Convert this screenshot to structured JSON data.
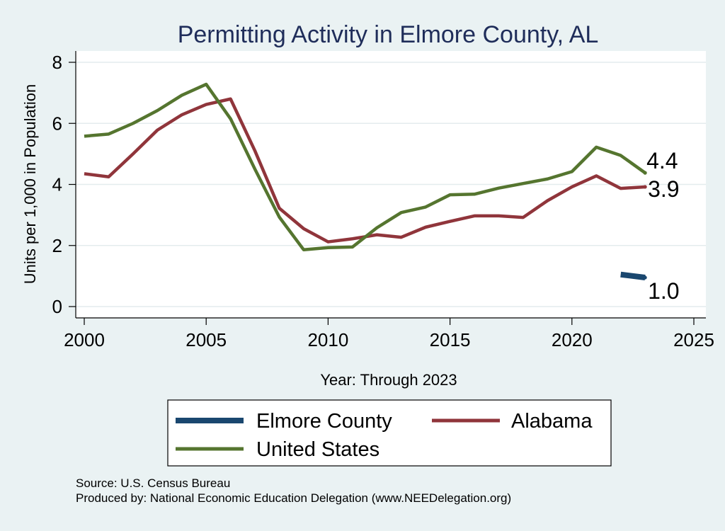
{
  "chart_data": {
    "type": "line",
    "title": "Permitting Activity in Elmore County, AL",
    "xlabel": "Year: Through 2023",
    "ylabel": "Units per 1,000 in Population",
    "xlim": [
      2000,
      2025
    ],
    "ylim": [
      0,
      8
    ],
    "x_ticks": [
      "2000",
      "2005",
      "2010",
      "2015",
      "2020",
      "2025"
    ],
    "y_ticks": [
      "0",
      "2",
      "4",
      "6",
      "8"
    ],
    "grid": true,
    "legend_position": "bottom",
    "series": [
      {
        "name": "Elmore County",
        "color": "#1a476f",
        "x": [
          2022,
          2023
        ],
        "values": [
          1.05,
          0.95
        ],
        "end_label": "1.0"
      },
      {
        "name": "Alabama",
        "color": "#90353b",
        "x": [
          2000,
          2001,
          2002,
          2003,
          2004,
          2005,
          2006,
          2007,
          2008,
          2009,
          2010,
          2011,
          2012,
          2013,
          2014,
          2015,
          2016,
          2017,
          2018,
          2019,
          2020,
          2021,
          2022,
          2023
        ],
        "values": [
          4.35,
          4.25,
          5.0,
          5.78,
          6.28,
          6.62,
          6.8,
          5.1,
          3.22,
          2.55,
          2.12,
          2.22,
          2.35,
          2.27,
          2.6,
          2.79,
          2.97,
          2.97,
          2.92,
          3.47,
          3.92,
          4.28,
          3.87,
          3.92
        ],
        "end_label": "3.9"
      },
      {
        "name": "United States",
        "color": "#55752f",
        "x": [
          2000,
          2001,
          2002,
          2003,
          2004,
          2005,
          2006,
          2007,
          2008,
          2009,
          2010,
          2011,
          2012,
          2013,
          2014,
          2015,
          2016,
          2017,
          2018,
          2019,
          2020,
          2021,
          2022,
          2023
        ],
        "values": [
          5.58,
          5.65,
          6.0,
          6.42,
          6.92,
          7.28,
          6.15,
          4.5,
          2.93,
          1.86,
          1.93,
          1.95,
          2.58,
          3.08,
          3.26,
          3.66,
          3.68,
          3.88,
          4.03,
          4.18,
          4.42,
          5.22,
          4.95,
          4.38
        ],
        "end_label": "4.4"
      }
    ],
    "legend_order": [
      "Elmore County",
      "Alabama",
      "United States"
    ],
    "notes": [
      "Source: U.S. Census Bureau",
      "Produced by: National Economic Education Delegation (www.NEEDelegation.org)"
    ]
  }
}
